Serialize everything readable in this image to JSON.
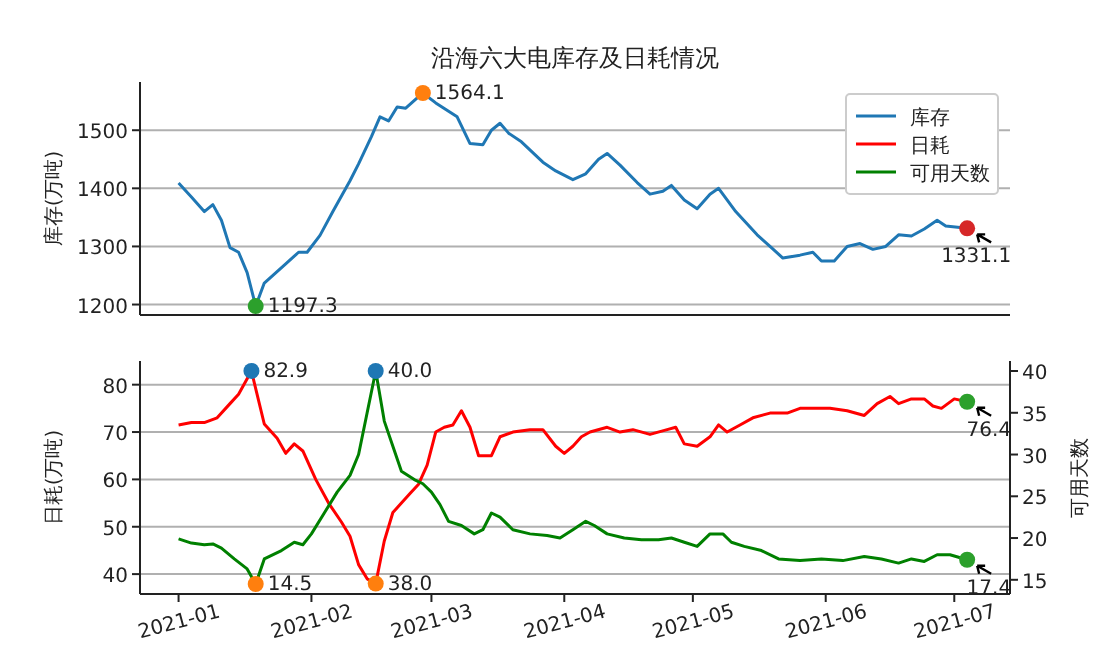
{
  "chart_data": [
    {
      "type": "line",
      "title": "沿海六大电库存及日耗情况",
      "ylabel": "库存(万吨)",
      "xlim": [
        "2020-12-23",
        "2021-07-14"
      ],
      "xticks": [
        "2021-01",
        "2021-02",
        "2021-03",
        "2021-04",
        "2021-05",
        "2021-06",
        "2021-07"
      ],
      "ylim": [
        1182,
        1583
      ],
      "yticks": [
        1200,
        1300,
        1400,
        1500
      ],
      "grid": "y",
      "legend": "top right",
      "tick_labels": "y",
      "series": [
        {
          "name": "库存",
          "color": "#1f77b4",
          "x": [
            "2021-01-01",
            "2021-01-04",
            "2021-01-07",
            "2021-01-09",
            "2021-01-11",
            "2021-01-13",
            "2021-01-15",
            "2021-01-17",
            "2021-01-19",
            "2021-01-21",
            "2021-01-26",
            "2021-01-29",
            "2021-01-31",
            "2021-02-03",
            "2021-02-06",
            "2021-02-10",
            "2021-02-12",
            "2021-02-15",
            "2021-02-17",
            "2021-02-19",
            "2021-02-21",
            "2021-02-23",
            "2021-02-27",
            "2021-03-02",
            "2021-03-07",
            "2021-03-10",
            "2021-03-13",
            "2021-03-15",
            "2021-03-17",
            "2021-03-19",
            "2021-03-22",
            "2021-03-27",
            "2021-03-30",
            "2021-04-03",
            "2021-04-06",
            "2021-04-09",
            "2021-04-11",
            "2021-04-14",
            "2021-04-18",
            "2021-04-21",
            "2021-04-24",
            "2021-04-26",
            "2021-04-29",
            "2021-05-02",
            "2021-05-05",
            "2021-05-07",
            "2021-05-11",
            "2021-05-16",
            "2021-05-19",
            "2021-05-22",
            "2021-05-26",
            "2021-05-29",
            "2021-05-31",
            "2021-06-03",
            "2021-06-06",
            "2021-06-09",
            "2021-06-12",
            "2021-06-15",
            "2021-06-18",
            "2021-06-21",
            "2021-06-24",
            "2021-06-27",
            "2021-06-29",
            "2021-07-04"
          ],
          "values": [
            1409,
            1385,
            1360,
            1372,
            1345,
            1298,
            1290,
            1255,
            1197.3,
            1237,
            1270,
            1290,
            1290,
            1319,
            1360,
            1413,
            1442,
            1489,
            1523,
            1516,
            1540,
            1538,
            1564.1,
            1547,
            1523,
            1477,
            1475,
            1500,
            1512,
            1495,
            1480,
            1445,
            1430,
            1415,
            1425,
            1450,
            1460,
            1440,
            1410,
            1390,
            1395,
            1405,
            1380,
            1365,
            1390,
            1400,
            1360,
            1320,
            1300,
            1280,
            1285,
            1290,
            1275,
            1275,
            1300,
            1305,
            1295,
            1300,
            1320,
            1318,
            1330,
            1345,
            1335,
            1331.1
          ]
        },
        {
          "type": "scatter",
          "x": [
            "2021-01-19",
            "2021-02-27",
            "2021-07-04"
          ],
          "values": [
            1197.3,
            1564.1,
            1331.1
          ],
          "colors": [
            "#2ca02c",
            "#ff7f0e",
            "#d62728"
          ],
          "value_labels": [
            "1197.3",
            "1564.1",
            "1331.1"
          ]
        }
      ]
    },
    {
      "type": "line",
      "ylabel": "日耗(万吨)",
      "y2label": "可用天数",
      "xlim": [
        "2020-12-23",
        "2021-07-14"
      ],
      "xticks": [
        "2021-01",
        "2021-02",
        "2021-03",
        "2021-04",
        "2021-05",
        "2021-06",
        "2021-07"
      ],
      "ylim": [
        35.8,
        85
      ],
      "yticks": [
        40,
        50,
        60,
        70,
        80
      ],
      "y2lim": [
        13.3,
        41.2
      ],
      "y2ticks": [
        15,
        20,
        25,
        30,
        35,
        40
      ],
      "grid": "y",
      "legend": "top right",
      "series": [
        {
          "name": "日耗",
          "color": "#ff0000",
          "x": [
            "2021-01-01",
            "2021-01-04",
            "2021-01-07",
            "2021-01-10",
            "2021-01-13",
            "2021-01-15",
            "2021-01-18",
            "2021-01-21",
            "2021-01-24",
            "2021-01-26",
            "2021-01-28",
            "2021-01-30",
            "2021-02-02",
            "2021-02-05",
            "2021-02-08",
            "2021-02-10",
            "2021-02-12",
            "2021-02-14",
            "2021-02-16",
            "2021-02-18",
            "2021-02-20",
            "2021-02-22",
            "2021-02-24",
            "2021-02-26",
            "2021-02-28",
            "2021-03-02",
            "2021-03-04",
            "2021-03-06",
            "2021-03-08",
            "2021-03-10",
            "2021-03-12",
            "2021-03-15",
            "2021-03-17",
            "2021-03-20",
            "2021-03-24",
            "2021-03-27",
            "2021-03-30",
            "2021-04-01",
            "2021-04-03",
            "2021-04-05",
            "2021-04-07",
            "2021-04-11",
            "2021-04-14",
            "2021-04-17",
            "2021-04-21",
            "2021-04-25",
            "2021-04-27",
            "2021-04-29",
            "2021-05-02",
            "2021-05-05",
            "2021-05-07",
            "2021-05-09",
            "2021-05-12",
            "2021-05-15",
            "2021-05-19",
            "2021-05-23",
            "2021-05-26",
            "2021-05-29",
            "2021-06-02",
            "2021-06-06",
            "2021-06-10",
            "2021-06-13",
            "2021-06-16",
            "2021-06-18",
            "2021-06-21",
            "2021-06-24",
            "2021-06-26",
            "2021-06-28",
            "2021-07-01",
            "2021-07-04"
          ],
          "values": [
            71.5,
            72,
            72,
            73,
            76,
            78,
            82.9,
            71.7,
            68.7,
            65.5,
            67.5,
            66,
            60,
            55,
            51,
            48,
            42,
            39,
            38.0,
            47,
            53,
            55,
            57,
            59,
            63,
            70,
            71,
            71.5,
            74.5,
            71,
            65,
            65,
            69,
            70,
            70.5,
            70.5,
            67,
            65.5,
            67,
            69,
            70,
            71,
            70,
            70.5,
            69.5,
            70.5,
            71,
            67.5,
            67,
            69,
            71.5,
            70,
            71.5,
            73,
            74,
            74,
            75,
            75,
            75,
            74.5,
            73.5,
            76,
            77.5,
            76,
            77,
            77,
            75.5,
            75,
            77,
            76.4
          ]
        },
        {
          "name": "可用天数",
          "color": "#008000",
          "axis": "y2",
          "x": [
            "2021-01-01",
            "2021-01-04",
            "2021-01-07",
            "2021-01-09",
            "2021-01-11",
            "2021-01-14",
            "2021-01-17",
            "2021-01-19",
            "2021-01-21",
            "2021-01-25",
            "2021-01-28",
            "2021-01-30",
            "2021-02-01",
            "2021-02-04",
            "2021-02-07",
            "2021-02-10",
            "2021-02-12",
            "2021-02-14",
            "2021-02-16",
            "2021-02-18",
            "2021-02-20",
            "2021-02-22",
            "2021-02-25",
            "2021-02-27",
            "2021-03-01",
            "2021-03-03",
            "2021-03-05",
            "2021-03-08",
            "2021-03-11",
            "2021-03-13",
            "2021-03-15",
            "2021-03-17",
            "2021-03-20",
            "2021-03-24",
            "2021-03-28",
            "2021-03-31",
            "2021-04-03",
            "2021-04-06",
            "2021-04-08",
            "2021-04-11",
            "2021-04-15",
            "2021-04-19",
            "2021-04-23",
            "2021-04-26",
            "2021-04-29",
            "2021-05-02",
            "2021-05-05",
            "2021-05-08",
            "2021-05-10",
            "2021-05-13",
            "2021-05-17",
            "2021-05-21",
            "2021-05-26",
            "2021-05-31",
            "2021-06-05",
            "2021-06-10",
            "2021-06-14",
            "2021-06-18",
            "2021-06-21",
            "2021-06-24",
            "2021-06-27",
            "2021-06-30",
            "2021-07-04"
          ],
          "values": [
            19.9,
            19.4,
            19.2,
            19.3,
            18.8,
            17.5,
            16.3,
            14.5,
            17.5,
            18.5,
            19.5,
            19.2,
            20.5,
            23,
            25.5,
            27.5,
            30,
            35,
            40.0,
            34,
            31,
            28,
            27,
            26.5,
            25.5,
            24,
            22,
            21.5,
            20.5,
            21,
            23,
            22.5,
            21,
            20.5,
            20.3,
            20,
            21,
            22,
            21.5,
            20.5,
            20,
            19.8,
            19.8,
            20,
            19.5,
            19,
            20.5,
            20.5,
            19.5,
            19,
            18.5,
            17.5,
            17.3,
            17.5,
            17.3,
            17.8,
            17.5,
            17,
            17.5,
            17.2,
            18,
            18,
            17.4
          ]
        },
        {
          "type": "scatter",
          "x": [
            "2021-01-18",
            "2021-02-16",
            "2021-07-04"
          ],
          "values": [
            82.9,
            38.0,
            76.4
          ],
          "colors": [
            "#1f77b4",
            "#ff7f0e",
            "#2ca02c"
          ],
          "value_labels": [
            "82.9",
            "38.0",
            "76.4"
          ]
        },
        {
          "type": "scatter",
          "axis": "y2",
          "x": [
            "2021-01-19",
            "2021-02-16",
            "2021-07-04"
          ],
          "values": [
            14.5,
            40.0,
            17.4
          ],
          "colors": [
            "#ff7f0e",
            "#1f77b4",
            "#2ca02c"
          ],
          "value_labels": [
            "14.5",
            "40.0",
            "17.4"
          ]
        }
      ]
    }
  ]
}
